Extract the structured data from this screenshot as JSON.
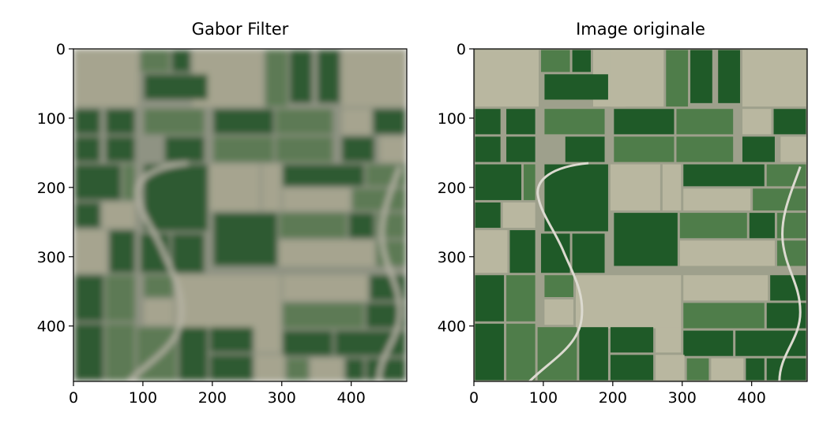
{
  "chart_data": [
    {
      "type": "image",
      "title": "Gabor Filter",
      "xlim": [
        0,
        480
      ],
      "ylim": [
        480,
        0
      ],
      "xticks": [
        0,
        100,
        200,
        300,
        400
      ],
      "yticks": [
        0,
        100,
        200,
        300,
        400
      ],
      "xtick_labels": [
        "0",
        "100",
        "200",
        "300",
        "400"
      ],
      "ytick_labels": [
        "0",
        "100",
        "200",
        "300",
        "400"
      ],
      "style": "blurred",
      "colors": {
        "background": "#8f9383",
        "road": "#b9b6a8",
        "dark_field": "#2f5a32",
        "mid_field": "#5d7a55",
        "light_field": "#a6a48f"
      }
    },
    {
      "type": "image",
      "title": "Image originale",
      "xlim": [
        0,
        480
      ],
      "ylim": [
        480,
        0
      ],
      "xticks": [
        0,
        100,
        200,
        300,
        400
      ],
      "yticks": [
        0,
        100,
        200,
        300,
        400
      ],
      "xtick_labels": [
        "0",
        "100",
        "200",
        "300",
        "400"
      ],
      "ytick_labels": [
        "0",
        "100",
        "200",
        "300",
        "400"
      ],
      "style": "sharp",
      "colors": {
        "background": "#9ea08c",
        "road": "#dcdad0",
        "dark_field": "#1f5a28",
        "mid_field": "#4f7d4a",
        "light_field": "#b9b7a0"
      }
    }
  ]
}
